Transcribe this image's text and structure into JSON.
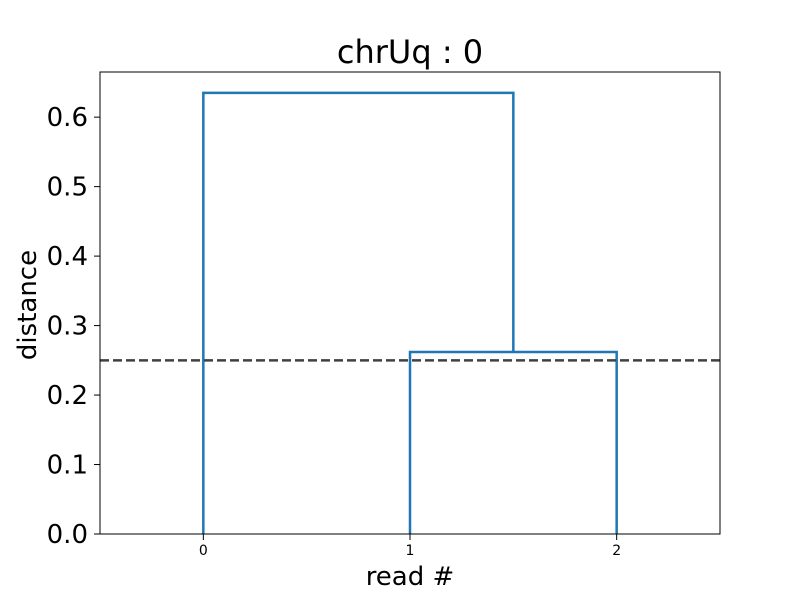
{
  "chart_data": {
    "type": "dendrogram",
    "title": "chrUq : 0",
    "xlabel": "read #",
    "ylabel": "distance",
    "leaves": [
      "0",
      "1",
      "2"
    ],
    "yticks": [
      "0.0",
      "0.1",
      "0.2",
      "0.3",
      "0.4",
      "0.5",
      "0.6"
    ],
    "ylim": [
      0,
      0.665
    ],
    "xlim": [
      -0.5,
      2.5
    ],
    "links": [
      {
        "left_x": 1,
        "right_x": 2,
        "left_y": 0,
        "right_y": 0,
        "height": 0.262
      },
      {
        "left_x": 0,
        "right_x": 1.5,
        "left_y": 0,
        "right_y": 0.262,
        "height": 0.635
      }
    ],
    "threshold": 0.25,
    "link_color": "#1f77b4",
    "threshold_color": "#404040",
    "grid": false,
    "legend": "none"
  }
}
